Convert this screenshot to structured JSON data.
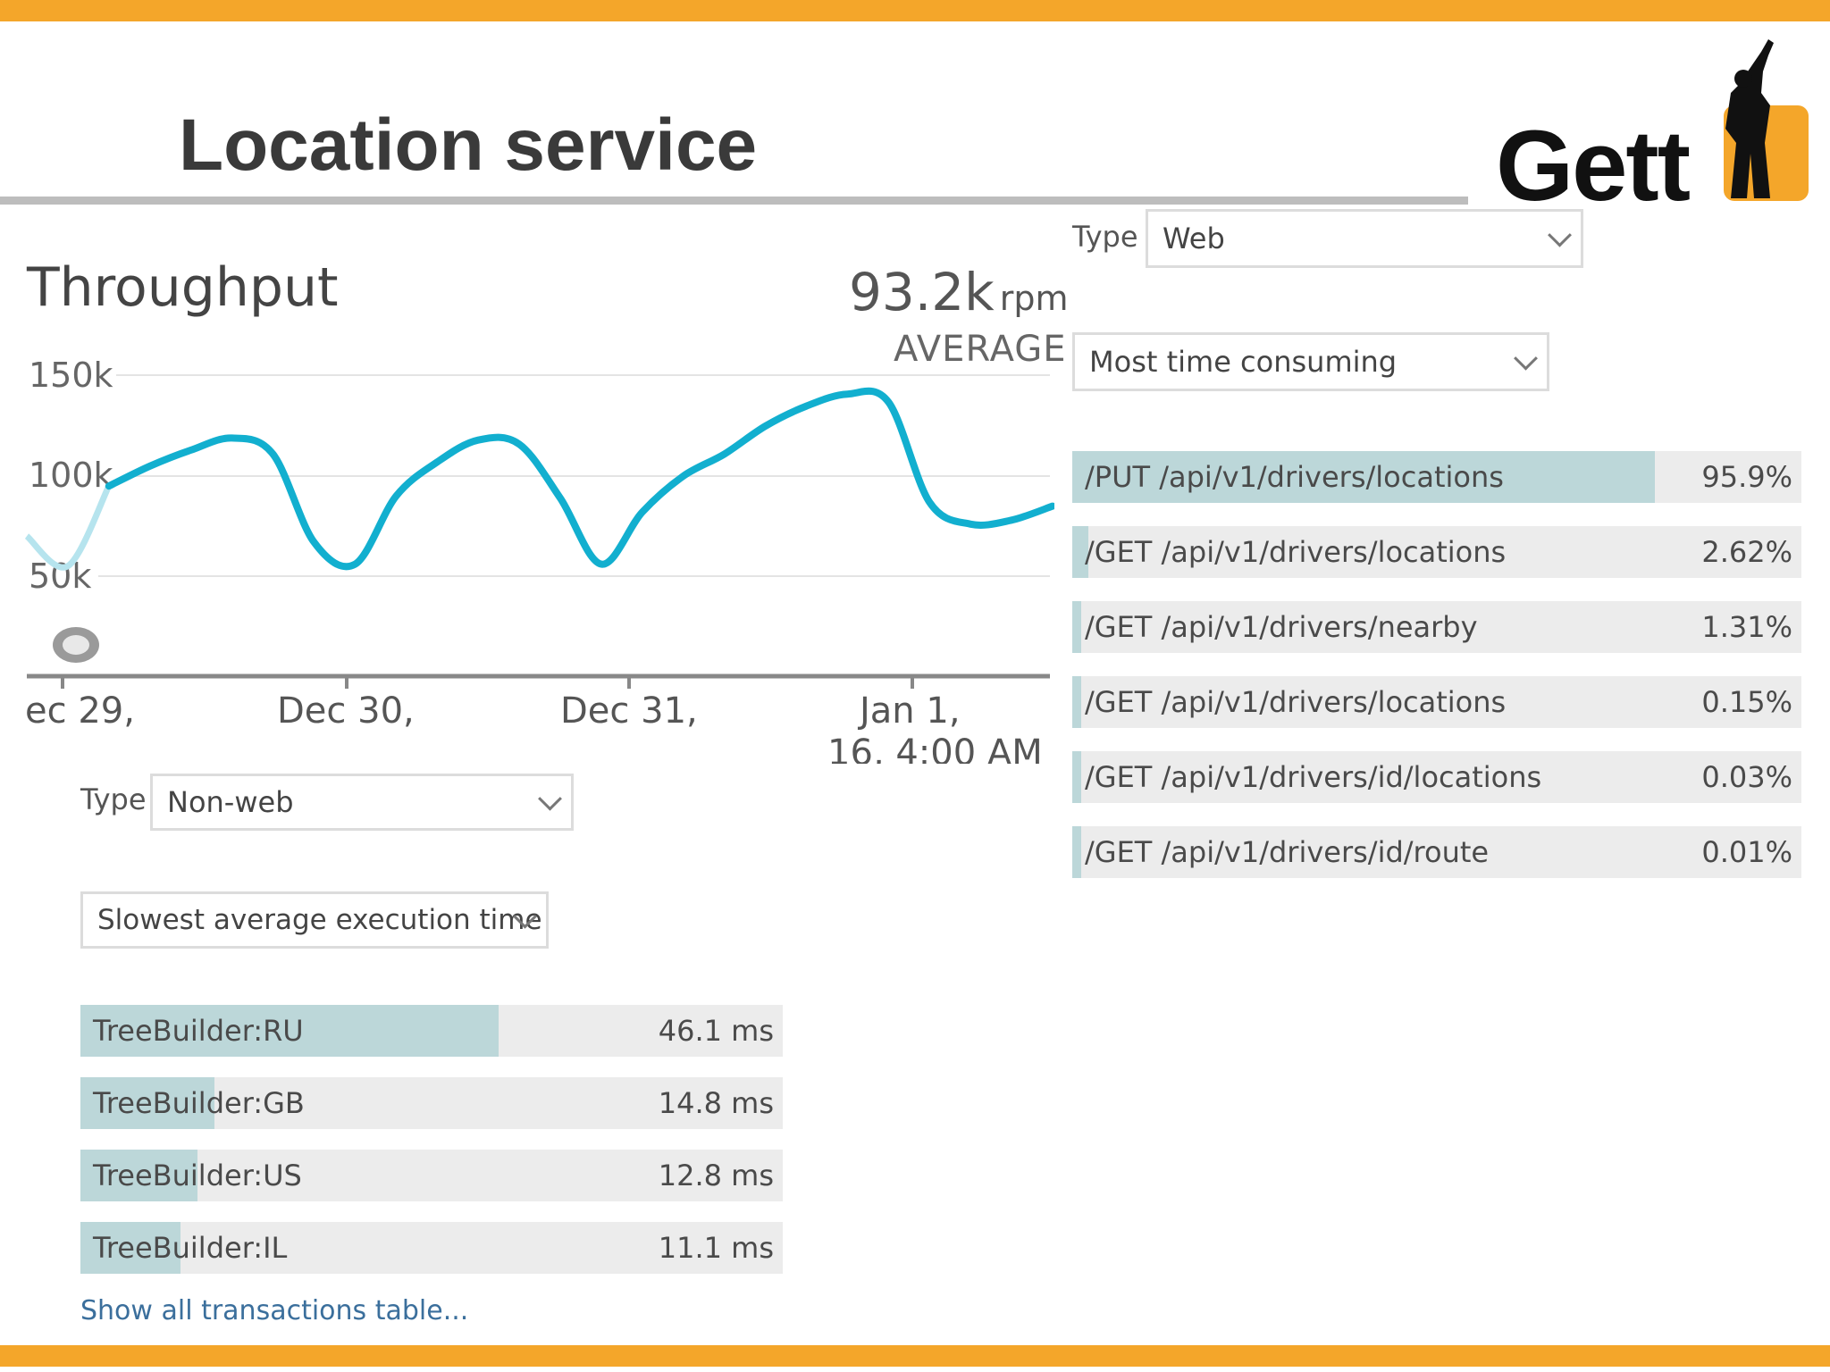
{
  "slide": {
    "title": "Location service",
    "logo_text": "Gett",
    "accent_color": "#f4a62a"
  },
  "throughput": {
    "title": "Throughput",
    "value": "93.2k",
    "unit": "rpm",
    "label": "AVERAGE",
    "y_ticks": [
      "150k",
      "100k",
      "50k"
    ],
    "x_ticks": [
      "ec 29,",
      "Dec 30,",
      "Dec 31,",
      "Jan 1,"
    ],
    "x_tick_sub": "16, 4:00 AM"
  },
  "chart_data": {
    "type": "line",
    "title": "Throughput",
    "ylabel": "rpm",
    "ylim": [
      0,
      150000
    ],
    "x_tick_labels": [
      "ec 29,",
      "Dec 30,",
      "Dec 31,",
      "Jan 1,"
    ],
    "series": [
      {
        "values": [
          70000,
          55000,
          95000,
          105000,
          113000,
          119000,
          111000,
          67000,
          56000,
          90000,
          107000,
          118000,
          116000,
          89000,
          56000,
          82000,
          100000,
          111000,
          125000,
          135000,
          141000,
          137000,
          87000,
          76000,
          78000,
          85000
        ]
      }
    ]
  },
  "nonweb": {
    "type_label": "Type",
    "type_value": "Non-web",
    "sort_value": "Slowest average execution time",
    "rows": [
      {
        "name": "TreeBuilder:RU",
        "value": "46.1 ms",
        "fraction": 1.0
      },
      {
        "name": "TreeBuilder:GB",
        "value": "14.8 ms",
        "fraction": 0.32
      },
      {
        "name": "TreeBuilder:US",
        "value": "12.8 ms",
        "fraction": 0.28
      },
      {
        "name": "TreeBuilder:IL",
        "value": "11.1 ms",
        "fraction": 0.24
      }
    ],
    "link": "Show all transactions table..."
  },
  "web": {
    "type_label": "Type",
    "type_value": "Web",
    "sort_value": "Most time consuming",
    "rows": [
      {
        "name": "/PUT /api/v1/drivers/locations",
        "value": "95.9%",
        "fraction": 0.959
      },
      {
        "name": "/GET /api/v1/drivers/locations",
        "value": "2.62%",
        "fraction": 0.0262
      },
      {
        "name": "/GET /api/v1/drivers/nearby",
        "value": "1.31%",
        "fraction": 0.0131
      },
      {
        "name": "/GET /api/v1/drivers/locations",
        "value": "0.15%",
        "fraction": 0.0015
      },
      {
        "name": "/GET /api/v1/drivers/id/locations",
        "value": "0.03%",
        "fraction": 0.0003
      },
      {
        "name": "/GET /api/v1/drivers/id/route",
        "value": "0.01%",
        "fraction": 0.0001
      }
    ]
  }
}
